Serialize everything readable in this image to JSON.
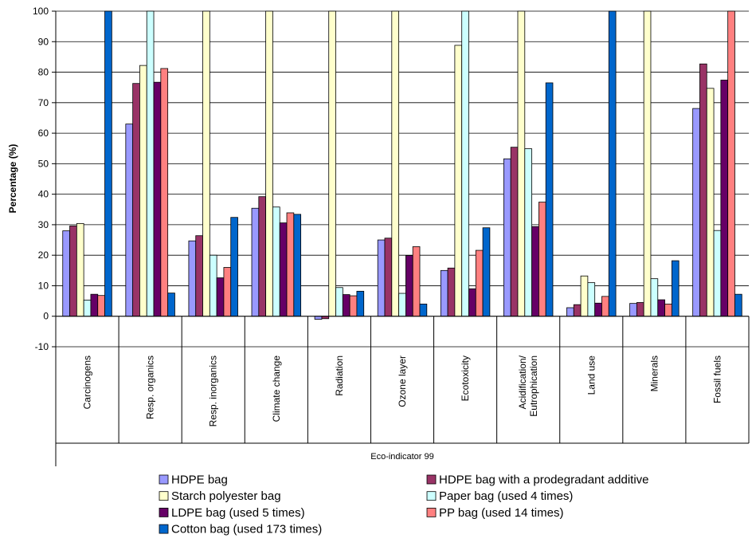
{
  "chart_data": {
    "type": "bar",
    "xlabel": "Eco-indicator 99",
    "ylabel": "Percentage (%)",
    "ylim": [
      -10,
      100
    ],
    "yticks": [
      -10,
      0,
      10,
      20,
      30,
      40,
      50,
      60,
      70,
      80,
      90,
      100
    ],
    "grid": true,
    "legend_position": "bottom",
    "categories": [
      "Carcinogens",
      "Resp. organics",
      "Resp. inorganics",
      "Climate change",
      "Radiation",
      "Ozone layer",
      "Ecotoxicity",
      "Acidification/\nEutrophication",
      "Land use",
      "Minerals",
      "Fossil fuels"
    ],
    "series": [
      {
        "name": "HDPE bag",
        "color": "#9999ff",
        "values": [
          28,
          63,
          24.7,
          35.4,
          -1,
          25,
          15,
          51.6,
          2.8,
          4.2,
          68.1
        ]
      },
      {
        "name": "HDPE bag with a prodegradant additive",
        "color": "#993366",
        "values": [
          29.6,
          76.3,
          26.4,
          39.2,
          -0.8,
          25.6,
          15.8,
          55.4,
          3.8,
          4.5,
          82.7
        ]
      },
      {
        "name": "Starch polyester bag",
        "color": "#ffffcc",
        "values": [
          30.4,
          82.2,
          100,
          100,
          100,
          100,
          88.8,
          100,
          13.2,
          100,
          74.7
        ]
      },
      {
        "name": "Paper bag (used 4 times)",
        "color": "#ccffff",
        "values": [
          5.3,
          100,
          20,
          35.8,
          9.4,
          7.5,
          100,
          54.9,
          11,
          12.3,
          28.1
        ]
      },
      {
        "name": "LDPE bag (used 5 times)",
        "color": "#660066",
        "values": [
          7.2,
          76.7,
          12.6,
          30.6,
          7.1,
          19.9,
          9,
          29.4,
          4.3,
          5.4,
          77.4
        ]
      },
      {
        "name": "PP bag (used 14 times)",
        "color": "#ff8080",
        "values": [
          6.8,
          81.2,
          16,
          33.9,
          6.7,
          22.8,
          21.6,
          37.4,
          6.5,
          4,
          100
        ]
      },
      {
        "name": "Cotton bag (used 173 times)",
        "color": "#0066cc",
        "values": [
          100,
          7.6,
          32.4,
          33.4,
          8.2,
          4,
          29,
          76.5,
          100,
          18.2,
          7.2
        ]
      }
    ]
  }
}
